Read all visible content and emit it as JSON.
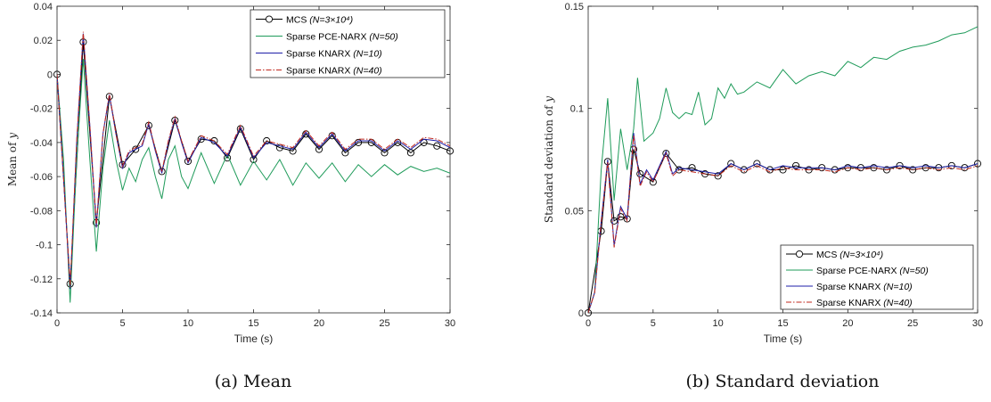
{
  "chart_data": [
    {
      "type": "line",
      "xlabel": "Time (s)",
      "ylabel_prefix": "Mean of ",
      "ylabel_var": "y",
      "caption": "(a) Mean",
      "xlim": [
        0,
        30
      ],
      "ylim": [
        -0.14,
        0.04
      ],
      "xticks": [
        0,
        5,
        10,
        15,
        20,
        25,
        30
      ],
      "yticks": [
        0.04,
        0.02,
        0,
        -0.02,
        -0.04,
        -0.06,
        -0.08,
        -0.1,
        -0.12,
        -0.14
      ],
      "ytick_labels": [
        "0.04",
        "0.02",
        "0",
        "-0.02",
        "-0.04",
        "-0.06",
        "-0.08",
        "-0.1",
        "-0.12",
        "-0.14"
      ],
      "legend_position": "top-right",
      "series": [
        {
          "name": "MCS",
          "label_suffix": "(N=3×10⁴)",
          "color": "#000000",
          "style": "solid",
          "marker": "circle",
          "x": [
            0,
            1,
            2,
            3,
            4,
            5,
            6,
            7,
            8,
            9,
            10,
            11,
            12,
            13,
            14,
            15,
            16,
            17,
            18,
            19,
            20,
            21,
            22,
            23,
            24,
            25,
            26,
            27,
            28,
            29,
            30
          ],
          "y": [
            0,
            -0.123,
            0.019,
            -0.087,
            -0.013,
            -0.053,
            -0.044,
            -0.03,
            -0.057,
            -0.027,
            -0.051,
            -0.038,
            -0.039,
            -0.049,
            -0.032,
            -0.05,
            -0.039,
            -0.043,
            -0.045,
            -0.035,
            -0.044,
            -0.036,
            -0.046,
            -0.04,
            -0.04,
            -0.046,
            -0.04,
            -0.046,
            -0.04,
            -0.042,
            -0.045
          ]
        },
        {
          "name": "Sparse PCE-NARX",
          "label_suffix": "(N=50)",
          "color": "#1f9b5a",
          "style": "solid",
          "x": [
            0,
            0.5,
            1,
            1.5,
            2,
            2.5,
            3,
            3.5,
            4,
            4.5,
            5,
            5.5,
            6,
            6.5,
            7,
            7.5,
            8,
            8.5,
            9,
            9.5,
            10,
            11,
            12,
            13,
            14,
            15,
            16,
            17,
            18,
            19,
            20,
            21,
            22,
            23,
            24,
            25,
            26,
            27,
            28,
            29,
            30
          ],
          "y": [
            0,
            -0.05,
            -0.134,
            -0.05,
            0.009,
            -0.05,
            -0.104,
            -0.055,
            -0.027,
            -0.05,
            -0.068,
            -0.055,
            -0.063,
            -0.05,
            -0.043,
            -0.06,
            -0.073,
            -0.05,
            -0.042,
            -0.06,
            -0.067,
            -0.046,
            -0.064,
            -0.047,
            -0.065,
            -0.051,
            -0.062,
            -0.05,
            -0.065,
            -0.052,
            -0.061,
            -0.052,
            -0.063,
            -0.053,
            -0.06,
            -0.053,
            -0.059,
            -0.054,
            -0.057,
            -0.055,
            -0.058
          ]
        },
        {
          "name": "Sparse KNARX",
          "label_suffix": "(N=10)",
          "color": "#1f1fa8",
          "style": "solid",
          "x": [
            0,
            0.5,
            1,
            1.5,
            2,
            2.5,
            3,
            3.5,
            4,
            4.5,
            5,
            5.5,
            6,
            6.5,
            7,
            7.5,
            8,
            8.5,
            9,
            9.5,
            10,
            11,
            12,
            13,
            14,
            15,
            16,
            17,
            18,
            19,
            20,
            21,
            22,
            23,
            24,
            25,
            26,
            27,
            28,
            29,
            30
          ],
          "y": [
            0,
            -0.06,
            -0.126,
            -0.04,
            0.024,
            -0.03,
            -0.09,
            -0.035,
            -0.012,
            -0.035,
            -0.055,
            -0.046,
            -0.044,
            -0.042,
            -0.029,
            -0.045,
            -0.058,
            -0.04,
            -0.026,
            -0.04,
            -0.052,
            -0.037,
            -0.04,
            -0.048,
            -0.031,
            -0.049,
            -0.04,
            -0.042,
            -0.044,
            -0.034,
            -0.043,
            -0.035,
            -0.045,
            -0.039,
            -0.039,
            -0.045,
            -0.039,
            -0.044,
            -0.038,
            -0.039,
            -0.043
          ]
        },
        {
          "name": "Sparse KNARX",
          "label_suffix": "(N=40)",
          "color": "#c0281e",
          "style": "dashdot",
          "x": [
            0,
            0.5,
            1,
            1.5,
            2,
            2.5,
            3,
            3.5,
            4,
            4.5,
            5,
            5.5,
            6,
            6.5,
            7,
            7.5,
            8,
            8.5,
            9,
            9.5,
            10,
            11,
            12,
            13,
            14,
            15,
            16,
            17,
            18,
            19,
            20,
            21,
            22,
            23,
            24,
            25,
            26,
            27,
            28,
            29,
            30
          ],
          "y": [
            0,
            -0.06,
            -0.125,
            -0.04,
            0.025,
            -0.03,
            -0.089,
            -0.035,
            -0.011,
            -0.035,
            -0.054,
            -0.045,
            -0.043,
            -0.041,
            -0.028,
            -0.044,
            -0.057,
            -0.039,
            -0.025,
            -0.039,
            -0.051,
            -0.036,
            -0.039,
            -0.047,
            -0.03,
            -0.048,
            -0.039,
            -0.041,
            -0.043,
            -0.033,
            -0.042,
            -0.034,
            -0.044,
            -0.038,
            -0.038,
            -0.044,
            -0.038,
            -0.043,
            -0.037,
            -0.038,
            -0.042
          ]
        }
      ]
    },
    {
      "type": "line",
      "xlabel": "Time (s)",
      "ylabel_prefix": "Standard deviation of ",
      "ylabel_var": "y",
      "caption": "(b) Standard deviation",
      "xlim": [
        0,
        30
      ],
      "ylim": [
        0,
        0.15
      ],
      "xticks": [
        0,
        5,
        10,
        15,
        20,
        25,
        30
      ],
      "yticks": [
        0.15,
        0.1,
        0.05,
        0
      ],
      "ytick_labels": [
        "0.15",
        "0.1",
        "0.05",
        "0"
      ],
      "legend_position": "bottom-right",
      "series": [
        {
          "name": "MCS",
          "label_suffix": "(N=3×10⁴)",
          "color": "#000000",
          "style": "solid",
          "marker": "circle",
          "x": [
            0,
            1,
            1.5,
            2,
            2.5,
            3,
            3.5,
            4,
            5,
            6,
            7,
            8,
            9,
            10,
            11,
            12,
            13,
            14,
            15,
            16,
            17,
            18,
            19,
            20,
            21,
            22,
            23,
            24,
            25,
            26,
            27,
            28,
            29,
            30
          ],
          "y": [
            0,
            0.04,
            0.074,
            0.045,
            0.047,
            0.046,
            0.08,
            0.068,
            0.064,
            0.078,
            0.07,
            0.071,
            0.068,
            0.067,
            0.073,
            0.07,
            0.073,
            0.07,
            0.07,
            0.072,
            0.07,
            0.071,
            0.07,
            0.071,
            0.071,
            0.071,
            0.07,
            0.072,
            0.07,
            0.071,
            0.071,
            0.072,
            0.071,
            0.073
          ]
        },
        {
          "name": "Sparse PCE-NARX",
          "label_suffix": "(N=50)",
          "color": "#1f9b5a",
          "style": "solid",
          "x": [
            0,
            0.5,
            1,
            1.5,
            2,
            2.5,
            3,
            3.5,
            3.8,
            4.3,
            5,
            5.5,
            6,
            6.5,
            7,
            7.5,
            8,
            8.5,
            9,
            9.5,
            10,
            10.5,
            11,
            11.5,
            12,
            13,
            14,
            15,
            16,
            17,
            18,
            19,
            20,
            21,
            22,
            23,
            24,
            25,
            26,
            27,
            28,
            29,
            30
          ],
          "y": [
            0,
            0.01,
            0.07,
            0.105,
            0.055,
            0.09,
            0.07,
            0.09,
            0.115,
            0.084,
            0.088,
            0.095,
            0.11,
            0.098,
            0.095,
            0.098,
            0.097,
            0.108,
            0.092,
            0.095,
            0.11,
            0.105,
            0.112,
            0.107,
            0.108,
            0.113,
            0.11,
            0.119,
            0.112,
            0.116,
            0.118,
            0.116,
            0.123,
            0.12,
            0.125,
            0.124,
            0.128,
            0.13,
            0.131,
            0.133,
            0.136,
            0.137,
            0.14
          ]
        },
        {
          "name": "Sparse KNARX",
          "label_suffix": "(N=10)",
          "color": "#1f1fa8",
          "style": "solid",
          "x": [
            0,
            0.5,
            1,
            1.5,
            2,
            2.5,
            3,
            3.5,
            4,
            4.5,
            5,
            5.5,
            6,
            6.5,
            7,
            8,
            9,
            10,
            11,
            12,
            13,
            14,
            15,
            16,
            17,
            18,
            19,
            20,
            21,
            22,
            23,
            24,
            25,
            26,
            27,
            28,
            29,
            30
          ],
          "y": [
            0,
            0.01,
            0.045,
            0.075,
            0.033,
            0.052,
            0.046,
            0.088,
            0.063,
            0.07,
            0.065,
            0.072,
            0.079,
            0.068,
            0.071,
            0.07,
            0.069,
            0.068,
            0.073,
            0.07,
            0.073,
            0.07,
            0.072,
            0.071,
            0.071,
            0.071,
            0.07,
            0.072,
            0.071,
            0.072,
            0.071,
            0.072,
            0.071,
            0.072,
            0.071,
            0.072,
            0.071,
            0.073
          ]
        },
        {
          "name": "Sparse KNARX",
          "label_suffix": "(N=40)",
          "color": "#c0281e",
          "style": "dashdot",
          "x": [
            0,
            0.5,
            1,
            1.5,
            2,
            2.5,
            3,
            3.5,
            4,
            4.5,
            5,
            5.5,
            6,
            6.5,
            7,
            8,
            9,
            10,
            11,
            12,
            13,
            14,
            15,
            16,
            17,
            18,
            19,
            20,
            21,
            22,
            23,
            24,
            25,
            26,
            27,
            28,
            29,
            30
          ],
          "y": [
            0,
            0.01,
            0.044,
            0.074,
            0.032,
            0.051,
            0.045,
            0.087,
            0.062,
            0.069,
            0.064,
            0.071,
            0.078,
            0.067,
            0.07,
            0.069,
            0.068,
            0.067,
            0.072,
            0.069,
            0.072,
            0.069,
            0.071,
            0.07,
            0.07,
            0.07,
            0.069,
            0.071,
            0.07,
            0.071,
            0.07,
            0.071,
            0.07,
            0.071,
            0.07,
            0.071,
            0.07,
            0.072
          ]
        }
      ]
    }
  ]
}
